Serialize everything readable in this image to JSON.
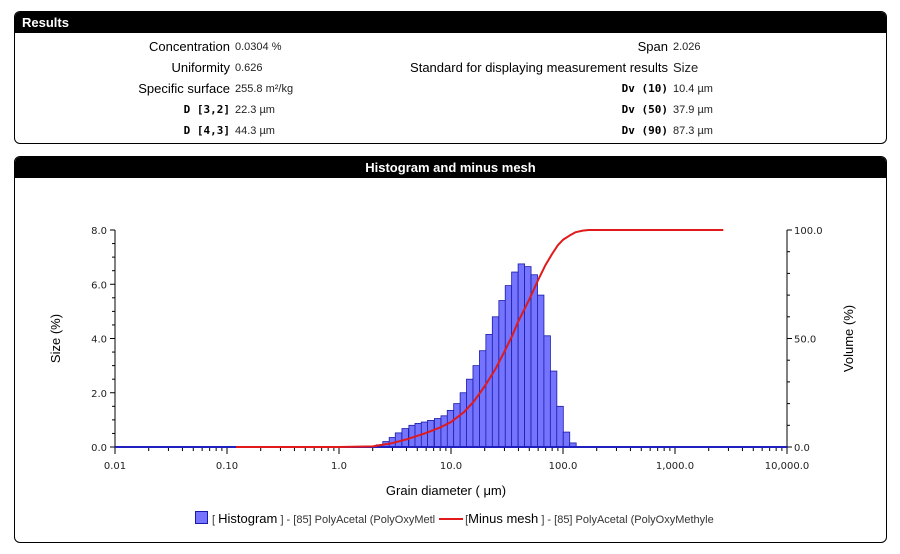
{
  "results": {
    "title": "Results",
    "left": [
      {
        "label": "Concentration",
        "value": "0.0304 %",
        "mono": false
      },
      {
        "label": "Uniformity",
        "value": "0.626",
        "mono": false
      },
      {
        "label": "Specific surface",
        "value": "255.8 m²/kg",
        "mono": false
      },
      {
        "label": "D [3,2]",
        "value": "22.3 µm",
        "mono": true
      },
      {
        "label": "D [4,3]",
        "value": "44.3 µm",
        "mono": true
      }
    ],
    "right": [
      {
        "label": "Span",
        "value": "2.026",
        "mono": false
      },
      {
        "label": "Standard for displaying measurement results",
        "value": "Size",
        "mono": false
      },
      {
        "label": "Dv (10)",
        "value": "10.4 µm",
        "mono": true
      },
      {
        "label": "Dv (50)",
        "value": "37.9 µm",
        "mono": true
      },
      {
        "label": "Dv (90)",
        "value": "87.3 µm",
        "mono": true
      }
    ]
  },
  "histogram_panel": {
    "title": "Histogram and minus mesh"
  },
  "legend": {
    "histogram_prefix": "[",
    "histogram_label": "Histogram",
    "histogram_suffix": "] - [85] PolyAcetal  (PolyOxyMetl",
    "minus_prefix": "[",
    "minus_label": "Minus mesh",
    "minus_suffix": "] - [85] PolyAcetal  (PolyOxyMethyle"
  },
  "colors": {
    "bar_fill": "#7474ff",
    "bar_stroke": "#1a1aa8",
    "curve": "#e01a1a",
    "baseline": "#2020c0"
  },
  "chart_data": {
    "type": "bar",
    "xlabel": "Grain diameter ( μm)",
    "ylabel": "Size (%)",
    "y2label": "Volume (%)",
    "x_scale": "log",
    "xlim": [
      0.01,
      10000
    ],
    "ylim": [
      0,
      8
    ],
    "y2lim": [
      0,
      100
    ],
    "x_ticks": [
      "0.01",
      "0.10",
      "1.0",
      "10.0",
      "100.0",
      "1,000.0",
      "10,000.0"
    ],
    "y_ticks": [
      "0.0",
      "2.0",
      "4.0",
      "6.0",
      "8.0"
    ],
    "y2_ticks": [
      "0.0",
      "50.0",
      "100.0"
    ],
    "series": [
      {
        "name": "Histogram",
        "type": "bar",
        "x": [
          2.3,
          2.63,
          3.0,
          3.4,
          3.9,
          4.5,
          5.1,
          5.8,
          6.6,
          7.6,
          8.7,
          9.9,
          11.3,
          12.9,
          14.7,
          16.8,
          19.2,
          21.9,
          25.0,
          28.6,
          32.6,
          37.2,
          42.5,
          48.5,
          55.4,
          63.2,
          72.2,
          82.4,
          94.1,
          107.4,
          122.6,
          140.0
        ],
        "values": [
          0.08,
          0.2,
          0.35,
          0.52,
          0.68,
          0.8,
          0.87,
          0.92,
          0.98,
          1.05,
          1.15,
          1.35,
          1.6,
          2.0,
          2.5,
          3.0,
          3.55,
          4.15,
          4.8,
          5.4,
          5.95,
          6.45,
          6.75,
          6.65,
          6.35,
          5.6,
          4.1,
          2.8,
          1.5,
          0.55,
          0.15,
          0.02
        ]
      },
      {
        "name": "Minus mesh",
        "type": "line",
        "axis": "right",
        "x": [
          0.12,
          1.0,
          2.0,
          3.0,
          4.0,
          6.0,
          8.0,
          10.0,
          13.0,
          16.0,
          20.0,
          25.0,
          30.0,
          35.0,
          40.0,
          50.0,
          60.0,
          70.0,
          80.0,
          90.0,
          100.0,
          115.0,
          130.0,
          150.0,
          170.0,
          200.0,
          1000.0,
          2700.0
        ],
        "values": [
          0,
          0,
          0.3,
          1.8,
          3.5,
          6.5,
          9.0,
          11.5,
          16,
          21,
          28,
          36,
          44,
          51,
          58,
          68,
          77,
          84,
          89,
          93,
          95.5,
          97.5,
          99,
          99.7,
          100,
          100,
          100,
          100
        ]
      }
    ]
  }
}
